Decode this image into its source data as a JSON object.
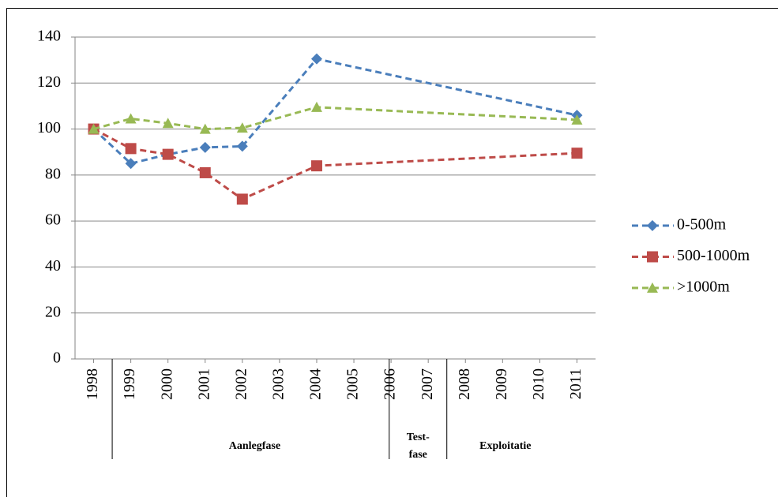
{
  "chart_data": {
    "type": "line",
    "x": [
      1998,
      1999,
      2000,
      2001,
      2002,
      2004,
      2011
    ],
    "series": [
      {
        "name": "0-500m",
        "color": "#4a7ebb",
        "marker": "diamond",
        "values": [
          100,
          85,
          89,
          92,
          92.5,
          130.5,
          106
        ]
      },
      {
        "name": "500-1000m",
        "color": "#be4b48",
        "marker": "square",
        "values": [
          100,
          91.5,
          89,
          81,
          69.5,
          84,
          89.5
        ]
      },
      {
        "name": ">1000m",
        "color": "#98b954",
        "marker": "triangle",
        "values": [
          100,
          104.5,
          102.5,
          100,
          100.5,
          109.5,
          104
        ]
      }
    ],
    "xlim": [
      1997.5,
      2011.5
    ],
    "xticks": [
      1998,
      1999,
      2000,
      2001,
      2002,
      2003,
      2004,
      2005,
      2006,
      2007,
      2008,
      2009,
      2010,
      2011
    ],
    "ylim": [
      0,
      140
    ],
    "yticks": [
      0,
      20,
      40,
      60,
      80,
      100,
      120,
      140
    ],
    "grid": true,
    "legend": "right",
    "phases": [
      "Aanlegfase",
      "Test-\nfase",
      "Exploitatie"
    ]
  }
}
